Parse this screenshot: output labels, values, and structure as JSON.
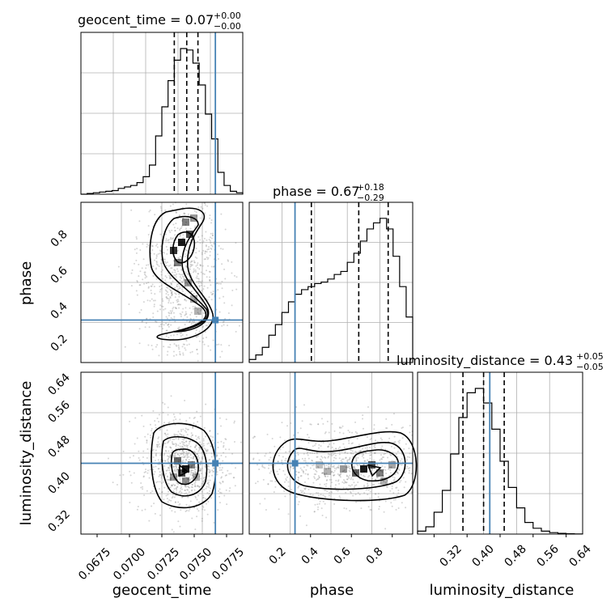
{
  "colors": {
    "truth": "#4682b4",
    "hist": "#000000",
    "grid": "#b0b0b0",
    "points": "#888888"
  },
  "chart_data": [
    {
      "type": "histogram",
      "panel": "geocent_time_hist",
      "title": {
        "param": "geocent_time",
        "value": "0.07",
        "plus": "+0.00",
        "minus": "−0.00"
      },
      "xlim": [
        0.0665,
        0.0795
      ],
      "xticks": [
        0.0675,
        0.07,
        0.0725,
        0.075,
        0.0775
      ],
      "bins": [
        0.0665,
        0.067,
        0.0675,
        0.068,
        0.0685,
        0.069,
        0.0695,
        0.07,
        0.0705,
        0.071,
        0.0715,
        0.072,
        0.0725,
        0.073,
        0.0735,
        0.074,
        0.0745,
        0.075,
        0.0755,
        0.076,
        0.0765,
        0.077,
        0.0775,
        0.078,
        0.0785,
        0.079,
        0.0795
      ],
      "counts": [
        0.0,
        0.5,
        1,
        1.5,
        2,
        2.5,
        4,
        5,
        6,
        8,
        12,
        20,
        40,
        60,
        78,
        92,
        100,
        99,
        90,
        75,
        55,
        38,
        15,
        6,
        2,
        1
      ],
      "quantile_lines": [
        0.074,
        0.075,
        0.0759
      ],
      "truth": 0.0773
    },
    {
      "type": "contour",
      "panel": "phase_vs_geocent_time",
      "ylabel": "phase",
      "xlim": [
        0.0665,
        0.0795
      ],
      "ylim": [
        0.02,
        1.0
      ],
      "yticks": [
        "0.2",
        "0.4",
        "0.6",
        "0.8"
      ],
      "truth": {
        "x": 0.0773,
        "y": 0.28
      }
    },
    {
      "type": "histogram",
      "panel": "phase_hist",
      "title": {
        "param": "phase",
        "value": "0.67",
        "plus": "+0.18",
        "minus": "−0.29"
      },
      "xlim": [
        0.0,
        1.0
      ],
      "bins": [
        0.0,
        0.04,
        0.08,
        0.12,
        0.16,
        0.2,
        0.24,
        0.28,
        0.32,
        0.36,
        0.4,
        0.44,
        0.48,
        0.52,
        0.56,
        0.6,
        0.64,
        0.68,
        0.72,
        0.76,
        0.8,
        0.84,
        0.88,
        0.92,
        0.96,
        1.0
      ],
      "counts": [
        2,
        5,
        10,
        18,
        25,
        33,
        40,
        45,
        48,
        50,
        52,
        53,
        55,
        58,
        60,
        66,
        72,
        80,
        88,
        92,
        95,
        88,
        70,
        50,
        30
      ],
      "quantile_lines": [
        0.38,
        0.67,
        0.85
      ],
      "truth": 0.28
    },
    {
      "type": "contour",
      "panel": "luminosity_distance_vs_geocent_time",
      "xlabel": "geocent_time",
      "ylabel": "luminosity_distance",
      "xlim": [
        0.0665,
        0.0795
      ],
      "ylim": [
        0.27,
        0.67
      ],
      "xticks": [
        "0.0675",
        "0.0700",
        "0.0725",
        "0.0750",
        "0.0775"
      ],
      "yticks": [
        "0.32",
        "0.40",
        "0.48",
        "0.56",
        "0.64"
      ],
      "truth": {
        "x": 0.0773,
        "y": 0.445
      }
    },
    {
      "type": "contour",
      "panel": "luminosity_distance_vs_phase",
      "xlabel": "phase",
      "xlim": [
        0.0,
        1.0
      ],
      "ylim": [
        0.27,
        0.67
      ],
      "xticks": [
        "0.2",
        "0.4",
        "0.6",
        "0.8"
      ],
      "truth": {
        "x": 0.28,
        "y": 0.445
      }
    },
    {
      "type": "histogram",
      "panel": "luminosity_distance_hist",
      "title": {
        "param": "luminosity_distance",
        "value": "0.43",
        "plus": "+0.05",
        "minus": "−0.05"
      },
      "xlabel": "luminosity_distance",
      "xlim": [
        0.27,
        0.67
      ],
      "xticks": [
        "0.32",
        "0.40",
        "0.48",
        "0.56",
        "0.64"
      ],
      "bins": [
        0.27,
        0.29,
        0.31,
        0.33,
        0.35,
        0.37,
        0.39,
        0.41,
        0.43,
        0.45,
        0.47,
        0.49,
        0.51,
        0.53,
        0.55,
        0.57,
        0.59,
        0.61,
        0.63,
        0.65,
        0.67
      ],
      "counts": [
        2,
        5,
        15,
        30,
        55,
        80,
        97,
        100,
        90,
        72,
        50,
        32,
        18,
        8,
        4,
        2,
        1,
        0.5,
        0.2,
        0.1
      ],
      "quantile_lines": [
        0.38,
        0.43,
        0.48
      ],
      "truth": 0.445
    }
  ]
}
